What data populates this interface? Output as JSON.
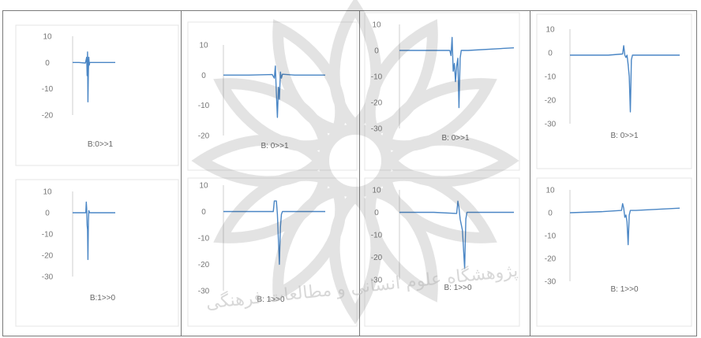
{
  "colors": {
    "series": "#4a86c5",
    "frame": "#7a7a7a",
    "text": "#777777"
  },
  "watermark": {
    "text": "پژوهشگاه علوم انسانی و مطالعات فرهنگی"
  },
  "chart_data": [
    {
      "type": "line",
      "title": "B:0>>1",
      "ylim": [
        -20,
        10
      ],
      "yticks": [
        10,
        0,
        -10,
        -20
      ],
      "tick_labels": [
        "10",
        "0",
        "-10",
        "-20"
      ],
      "series": [
        {
          "points": [
            [
              0,
              0
            ],
            [
              15,
              0
            ],
            [
              30,
              -0.2
            ],
            [
              33,
              2
            ],
            [
              34,
              -5
            ],
            [
              35,
              4
            ],
            [
              36,
              -15
            ],
            [
              37,
              -3
            ],
            [
              38,
              2
            ],
            [
              39,
              -1
            ],
            [
              40,
              0
            ],
            [
              60,
              0
            ],
            [
              100,
              0
            ]
          ]
        }
      ]
    },
    {
      "type": "line",
      "title": "B:1>>0",
      "ylim": [
        -30,
        10
      ],
      "yticks": [
        10,
        0,
        -10,
        -20,
        -30
      ],
      "tick_labels": [
        "10",
        "0",
        "-10",
        "-20",
        "-30"
      ],
      "series": [
        {
          "points": [
            [
              0,
              0
            ],
            [
              20,
              0
            ],
            [
              31,
              0
            ],
            [
              32,
              5
            ],
            [
              33,
              2
            ],
            [
              34,
              -6
            ],
            [
              35,
              -8
            ],
            [
              36,
              -22
            ],
            [
              37,
              -4
            ],
            [
              38,
              1
            ],
            [
              40,
              0
            ],
            [
              60,
              0
            ],
            [
              100,
              0
            ]
          ]
        }
      ]
    },
    {
      "type": "line",
      "title": "B: 0>>1",
      "ylim": [
        -20,
        10
      ],
      "yticks": [
        10,
        0,
        -10,
        -20
      ],
      "tick_labels": [
        "10",
        "0",
        "-10",
        "-20"
      ],
      "series": [
        {
          "points": [
            [
              0,
              0
            ],
            [
              25,
              0
            ],
            [
              48,
              0.2
            ],
            [
              50,
              -1
            ],
            [
              51,
              3
            ],
            [
              52,
              -6
            ],
            [
              53,
              -14
            ],
            [
              54,
              -4
            ],
            [
              55,
              -8
            ],
            [
              56,
              1
            ],
            [
              57,
              -1
            ],
            [
              58,
              0.3
            ],
            [
              70,
              0
            ],
            [
              100,
              0
            ]
          ]
        }
      ]
    },
    {
      "type": "line",
      "title": "B: 1>>0",
      "ylim": [
        -30,
        10
      ],
      "yticks": [
        10,
        0,
        -10,
        -20,
        -30
      ],
      "tick_labels": [
        "10",
        "0",
        "-10",
        "-20",
        "-30"
      ],
      "series": [
        {
          "points": [
            [
              0,
              0
            ],
            [
              40,
              0
            ],
            [
              49,
              0
            ],
            [
              50,
              4
            ],
            [
              52,
              4
            ],
            [
              53,
              -1
            ],
            [
              55,
              -20
            ],
            [
              56,
              -6
            ],
            [
              57,
              -1
            ],
            [
              58,
              0
            ],
            [
              70,
              0
            ],
            [
              100,
              0
            ]
          ]
        }
      ]
    },
    {
      "type": "line",
      "title": "B: 0>>1",
      "ylim": [
        -30,
        10
      ],
      "yticks": [
        10,
        0,
        -10,
        -20,
        -30
      ],
      "tick_labels": [
        "10",
        "0",
        "-10",
        "-20",
        "-30"
      ],
      "series": [
        {
          "points": [
            [
              0,
              0
            ],
            [
              20,
              0
            ],
            [
              44,
              0
            ],
            [
              45,
              -2
            ],
            [
              46,
              5
            ],
            [
              47,
              -8
            ],
            [
              48,
              -5
            ],
            [
              49,
              -12
            ],
            [
              50,
              -6
            ],
            [
              51,
              -3
            ],
            [
              52,
              -22
            ],
            [
              53,
              -3
            ],
            [
              54,
              0
            ],
            [
              60,
              0
            ],
            [
              100,
              1
            ]
          ]
        }
      ]
    },
    {
      "type": "line",
      "title": "B: 1>>0",
      "ylim": [
        -30,
        10
      ],
      "yticks": [
        10,
        0,
        -10,
        -20,
        -30
      ],
      "tick_labels": [
        "10",
        "0",
        "-10",
        "-20",
        "-30"
      ],
      "series": [
        {
          "points": [
            [
              0,
              0
            ],
            [
              30,
              0
            ],
            [
              50,
              -0.5
            ],
            [
              51,
              5
            ],
            [
              52,
              2
            ],
            [
              53,
              -3
            ],
            [
              55,
              -8
            ],
            [
              57,
              -25
            ],
            [
              58,
              -3
            ],
            [
              59,
              0
            ],
            [
              70,
              0
            ],
            [
              100,
              0
            ]
          ]
        }
      ]
    },
    {
      "type": "line",
      "title": "B: 0>>1",
      "ylim": [
        -30,
        10
      ],
      "yticks": [
        10,
        0,
        -10,
        -20,
        -30
      ],
      "tick_labels": [
        "10",
        "0",
        "-10",
        "-20",
        "-30"
      ],
      "series": [
        {
          "points": [
            [
              0,
              -1
            ],
            [
              35,
              -1
            ],
            [
              48,
              -0.5
            ],
            [
              49,
              3
            ],
            [
              50,
              -1
            ],
            [
              51,
              -2
            ],
            [
              52,
              -1
            ],
            [
              53,
              -5
            ],
            [
              54,
              -10
            ],
            [
              55,
              -25
            ],
            [
              56,
              -3
            ],
            [
              57,
              -1
            ],
            [
              100,
              -1
            ]
          ]
        }
      ]
    },
    {
      "type": "line",
      "title": "B: 1>>0",
      "ylim": [
        -30,
        10
      ],
      "yticks": [
        10,
        0,
        -10,
        -20,
        -30
      ],
      "tick_labels": [
        "10",
        "0",
        "-10",
        "-20",
        "-30"
      ],
      "series": [
        {
          "points": [
            [
              0,
              0
            ],
            [
              30,
              0.5
            ],
            [
              47,
              1
            ],
            [
              48,
              4
            ],
            [
              49,
              2
            ],
            [
              50,
              -2
            ],
            [
              51,
              -1
            ],
            [
              52,
              -4
            ],
            [
              53,
              -14
            ],
            [
              54,
              -1
            ],
            [
              55,
              1
            ],
            [
              60,
              1
            ],
            [
              100,
              2
            ]
          ]
        }
      ]
    }
  ]
}
